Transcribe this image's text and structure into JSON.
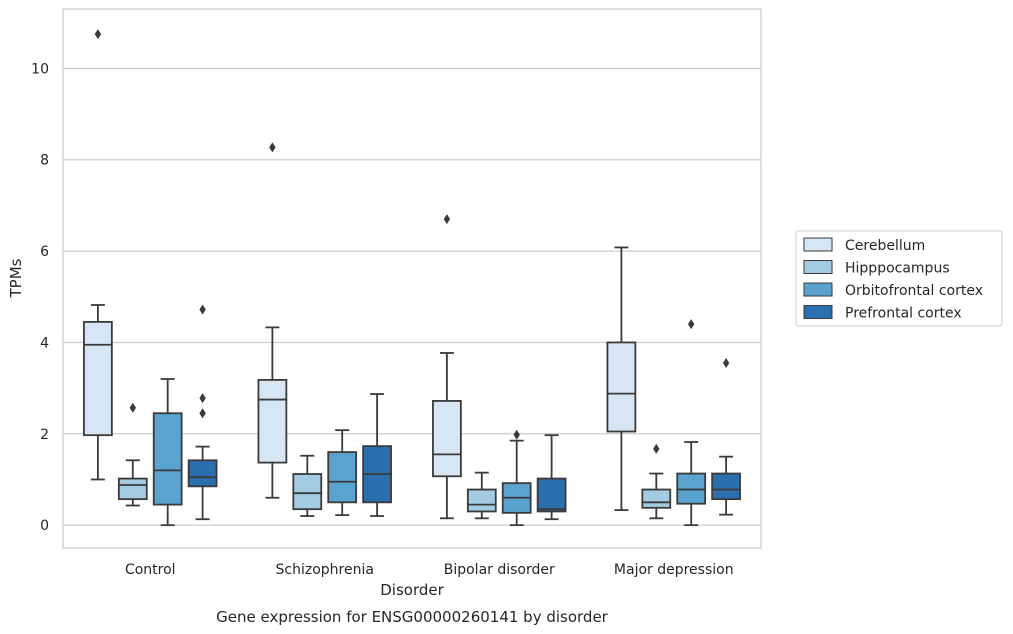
{
  "chart_data": {
    "type": "box",
    "title": "",
    "caption": "Gene expression for ENSG00000260141 by disorder",
    "xlabel": "Disorder",
    "ylabel": "TPMs",
    "ylim": [
      -0.5,
      11.3
    ],
    "yticks": [
      0,
      2,
      4,
      6,
      8,
      10
    ],
    "grid": true,
    "legend_position": "right",
    "categories": [
      "Control",
      "Schizophrenia",
      "Bipolar disorder",
      "Major depression"
    ],
    "series": [
      {
        "name": "Cerebellum",
        "color": "#d6e6f4",
        "boxes": [
          {
            "whisker_low": 1.0,
            "q1": 1.97,
            "median": 3.95,
            "q3": 4.45,
            "whisker_high": 4.82,
            "outliers": [
              10.75
            ]
          },
          {
            "whisker_low": 0.6,
            "q1": 1.37,
            "median": 2.75,
            "q3": 3.18,
            "whisker_high": 4.33,
            "outliers": [
              8.27
            ]
          },
          {
            "whisker_low": 0.15,
            "q1": 1.07,
            "median": 1.55,
            "q3": 2.72,
            "whisker_high": 3.77,
            "outliers": [
              6.7
            ]
          },
          {
            "whisker_low": 0.33,
            "q1": 2.05,
            "median": 2.88,
            "q3": 4.0,
            "whisker_high": 6.08,
            "outliers": []
          }
        ]
      },
      {
        "name": "Hipppocampus",
        "color": "#a3cce3",
        "boxes": [
          {
            "whisker_low": 0.43,
            "q1": 0.57,
            "median": 0.88,
            "q3": 1.02,
            "whisker_high": 1.42,
            "outliers": [
              2.57
            ]
          },
          {
            "whisker_low": 0.2,
            "q1": 0.35,
            "median": 0.7,
            "q3": 1.12,
            "whisker_high": 1.52,
            "outliers": []
          },
          {
            "whisker_low": 0.15,
            "q1": 0.3,
            "median": 0.45,
            "q3": 0.78,
            "whisker_high": 1.15,
            "outliers": []
          },
          {
            "whisker_low": 0.15,
            "q1": 0.38,
            "median": 0.5,
            "q3": 0.78,
            "whisker_high": 1.13,
            "outliers": [
              1.67
            ]
          }
        ]
      },
      {
        "name": "Orbitofrontal cortex",
        "color": "#5ba3cf",
        "boxes": [
          {
            "whisker_low": 0.0,
            "q1": 0.45,
            "median": 1.2,
            "q3": 2.45,
            "whisker_high": 3.2,
            "outliers": []
          },
          {
            "whisker_low": 0.22,
            "q1": 0.5,
            "median": 0.95,
            "q3": 1.6,
            "whisker_high": 2.08,
            "outliers": []
          },
          {
            "whisker_low": 0.0,
            "q1": 0.27,
            "median": 0.6,
            "q3": 0.92,
            "whisker_high": 1.85,
            "outliers": [
              1.98
            ]
          },
          {
            "whisker_low": 0.0,
            "q1": 0.47,
            "median": 0.78,
            "q3": 1.13,
            "whisker_high": 1.82,
            "outliers": [
              4.4
            ]
          }
        ]
      },
      {
        "name": "Prefrontal cortex",
        "color": "#2b6fae",
        "boxes": [
          {
            "whisker_low": 0.13,
            "q1": 0.85,
            "median": 1.05,
            "q3": 1.42,
            "whisker_high": 1.72,
            "outliers": [
              2.45,
              2.78,
              4.72
            ]
          },
          {
            "whisker_low": 0.2,
            "q1": 0.5,
            "median": 1.12,
            "q3": 1.73,
            "whisker_high": 2.87,
            "outliers": []
          },
          {
            "whisker_low": 0.13,
            "q1": 0.3,
            "median": 0.35,
            "q3": 1.02,
            "whisker_high": 1.97,
            "outliers": []
          },
          {
            "whisker_low": 0.23,
            "q1": 0.57,
            "median": 0.78,
            "q3": 1.13,
            "whisker_high": 1.5,
            "outliers": [
              3.55
            ]
          }
        ]
      }
    ]
  }
}
